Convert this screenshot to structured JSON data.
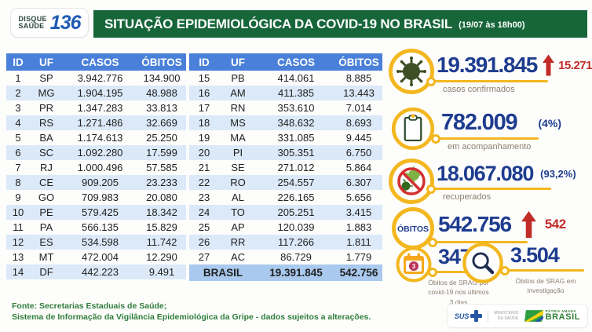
{
  "header": {
    "logo_line1": "DISQUE",
    "logo_line2": "SAÚDE",
    "logo_number": "136",
    "title": "SITUAÇÃO EPIDEMIOLÓGICA DA COVID-19 NO BRASIL",
    "timestamp": "(19/07 às 18h00)"
  },
  "tables": {
    "columns": [
      "ID",
      "UF",
      "CASOS",
      "ÓBITOS"
    ],
    "left_rows": [
      {
        "id": "1",
        "uf": "SP",
        "casos": "3.942.776",
        "obitos": "134.900"
      },
      {
        "id": "2",
        "uf": "MG",
        "casos": "1.904.195",
        "obitos": "48.988"
      },
      {
        "id": "3",
        "uf": "PR",
        "casos": "1.347.283",
        "obitos": "33.813"
      },
      {
        "id": "4",
        "uf": "RS",
        "casos": "1.271.486",
        "obitos": "32.669"
      },
      {
        "id": "5",
        "uf": "BA",
        "casos": "1.174.613",
        "obitos": "25.250"
      },
      {
        "id": "6",
        "uf": "SC",
        "casos": "1.092.280",
        "obitos": "17.599"
      },
      {
        "id": "7",
        "uf": "RJ",
        "casos": "1.000.496",
        "obitos": "57.585"
      },
      {
        "id": "8",
        "uf": "CE",
        "casos": "909.205",
        "obitos": "23.233"
      },
      {
        "id": "9",
        "uf": "GO",
        "casos": "709.983",
        "obitos": "20.080"
      },
      {
        "id": "10",
        "uf": "PE",
        "casos": "579.425",
        "obitos": "18.342"
      },
      {
        "id": "11",
        "uf": "PA",
        "casos": "566.135",
        "obitos": "15.829"
      },
      {
        "id": "12",
        "uf": "ES",
        "casos": "534.598",
        "obitos": "11.742"
      },
      {
        "id": "13",
        "uf": "MT",
        "casos": "472.004",
        "obitos": "12.290"
      },
      {
        "id": "14",
        "uf": "DF",
        "casos": "442.223",
        "obitos": "9.491"
      }
    ],
    "right_rows": [
      {
        "id": "15",
        "uf": "PB",
        "casos": "414.061",
        "obitos": "8.885"
      },
      {
        "id": "16",
        "uf": "AM",
        "casos": "411.385",
        "obitos": "13.443"
      },
      {
        "id": "17",
        "uf": "RN",
        "casos": "353.610",
        "obitos": "7.014"
      },
      {
        "id": "18",
        "uf": "MS",
        "casos": "348.632",
        "obitos": "8.693"
      },
      {
        "id": "19",
        "uf": "MA",
        "casos": "331.085",
        "obitos": "9.445"
      },
      {
        "id": "20",
        "uf": "PI",
        "casos": "305.351",
        "obitos": "6.750"
      },
      {
        "id": "21",
        "uf": "SE",
        "casos": "271.012",
        "obitos": "5.864"
      },
      {
        "id": "22",
        "uf": "RO",
        "casos": "254.557",
        "obitos": "6.307"
      },
      {
        "id": "23",
        "uf": "AL",
        "casos": "226.165",
        "obitos": "5.656"
      },
      {
        "id": "24",
        "uf": "TO",
        "casos": "205.251",
        "obitos": "3.415"
      },
      {
        "id": "25",
        "uf": "AP",
        "casos": "120.039",
        "obitos": "1.883"
      },
      {
        "id": "26",
        "uf": "RR",
        "casos": "117.266",
        "obitos": "1.811"
      },
      {
        "id": "27",
        "uf": "AC",
        "casos": "86.729",
        "obitos": "1.779"
      }
    ],
    "total_row": {
      "label": "BRASIL",
      "casos": "19.391.845",
      "obitos": "542.756"
    }
  },
  "stats": [
    {
      "value": "19.391.845",
      "delta": "15.271",
      "label": "casos confirmados"
    },
    {
      "value": "782.009",
      "percent": "(4%)",
      "label": "em acompanhamento"
    },
    {
      "value": "18.067.080",
      "percent": "(93,2%)",
      "label": "recuperados"
    },
    {
      "badge": "ÓBITOS",
      "value": "542.756",
      "delta": "542"
    },
    {
      "icon_badge": "3",
      "value": "347",
      "label_lines": [
        "Óbitos de SRAG por",
        "covid-19 nos últimos",
        "3 dias"
      ]
    },
    {
      "value": "3.504",
      "label_lines": [
        "Óbitos de SRAG em",
        "investigação"
      ]
    }
  ],
  "footer": {
    "source_line1": "Fonte: Secretarias Estaduais de Saúde;",
    "source_line2": "Sistema de Informação da Vigilância Epidemiológica da Gripe - dados sujeitos a alterações.",
    "logos": {
      "sus_label": "SUS",
      "ministry_line1": "MINISTÉRIO",
      "ministry_line2": "DA SAÚDE",
      "brand_top": "PÁTRIA AMADA",
      "brand_bottom": "BRASIL"
    }
  },
  "colors": {
    "banner_green": "#17663a",
    "table_header_blue": "#4a80d9",
    "row_stripe_blue": "#dbe9f8",
    "total_row_blue": "#a9c9ee",
    "number_navy": "#1e3d8f",
    "delta_red": "#c22c28",
    "accent_gold": "#f3b71f",
    "label_gray": "#8b7f71",
    "footer_green": "#2f7d3a"
  },
  "chart_data": {
    "type": "table",
    "title": "SITUAÇÃO EPIDEMIOLÓGICA DA COVID-19 NO BRASIL (19/07 às 18h00)",
    "columns": [
      "ID",
      "UF",
      "CASOS",
      "ÓBITOS"
    ],
    "rows": [
      [
        1,
        "SP",
        3942776,
        134900
      ],
      [
        2,
        "MG",
        1904195,
        48988
      ],
      [
        3,
        "PR",
        1347283,
        33813
      ],
      [
        4,
        "RS",
        1271486,
        32669
      ],
      [
        5,
        "BA",
        1174613,
        25250
      ],
      [
        6,
        "SC",
        1092280,
        17599
      ],
      [
        7,
        "RJ",
        1000496,
        57585
      ],
      [
        8,
        "CE",
        909205,
        23233
      ],
      [
        9,
        "GO",
        709983,
        20080
      ],
      [
        10,
        "PE",
        579425,
        18342
      ],
      [
        11,
        "PA",
        566135,
        15829
      ],
      [
        12,
        "ES",
        534598,
        11742
      ],
      [
        13,
        "MT",
        472004,
        12290
      ],
      [
        14,
        "DF",
        442223,
        9491
      ],
      [
        15,
        "PB",
        414061,
        8885
      ],
      [
        16,
        "AM",
        411385,
        13443
      ],
      [
        17,
        "RN",
        353610,
        7014
      ],
      [
        18,
        "MS",
        348632,
        8693
      ],
      [
        19,
        "MA",
        331085,
        9445
      ],
      [
        20,
        "PI",
        305351,
        6750
      ],
      [
        21,
        "SE",
        271012,
        5864
      ],
      [
        22,
        "RO",
        254557,
        6307
      ],
      [
        23,
        "AL",
        226165,
        5656
      ],
      [
        24,
        "TO",
        205251,
        3415
      ],
      [
        25,
        "AP",
        120039,
        1883
      ],
      [
        26,
        "RR",
        117266,
        1811
      ],
      [
        27,
        "AC",
        86729,
        1779
      ]
    ],
    "total": {
      "label": "BRASIL",
      "casos": 19391845,
      "obitos": 542756
    },
    "indicators": [
      {
        "label": "casos confirmados",
        "value": 19391845,
        "delta": 15271
      },
      {
        "label": "em acompanhamento",
        "value": 782009,
        "percent": "4%"
      },
      {
        "label": "recuperados",
        "value": 18067080,
        "percent": "93,2%"
      },
      {
        "label": "óbitos",
        "value": 542756,
        "delta": 542
      },
      {
        "label": "Óbitos de SRAG por covid-19 nos últimos 3 dias",
        "value": 347
      },
      {
        "label": "Óbitos de SRAG em investigação",
        "value": 3504
      }
    ]
  }
}
